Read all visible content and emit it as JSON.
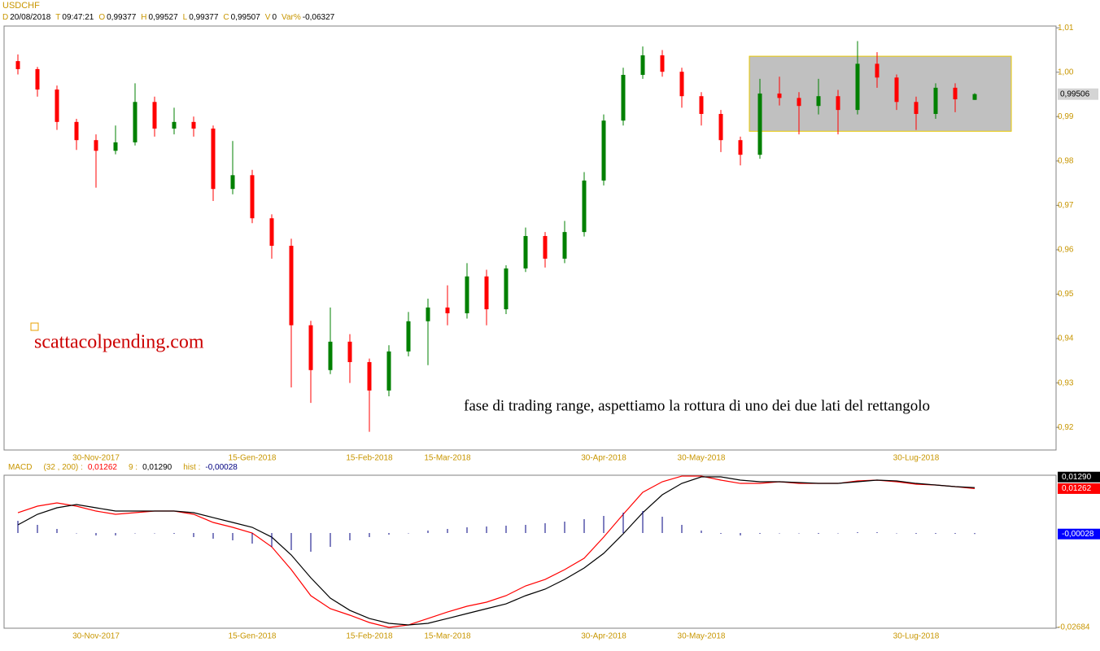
{
  "chart_data": [
    {
      "type": "candlestick",
      "title": "USDCHF",
      "info": [
        {
          "label": "D",
          "value": "20/08/2018"
        },
        {
          "label": "T",
          "value": "09:47:21"
        },
        {
          "label": "O",
          "value": "0,99377"
        },
        {
          "label": "H",
          "value": "0,99527"
        },
        {
          "label": "L",
          "value": "0,99377"
        },
        {
          "label": "C",
          "value": "0,99507"
        },
        {
          "label": "V",
          "value": "0"
        },
        {
          "label": "Var%",
          "value": "-0,06327"
        }
      ],
      "categories": [
        null,
        null,
        null,
        null,
        "30-Nov-2017",
        null,
        null,
        null,
        null,
        null,
        null,
        null,
        "15-Gen-2018",
        null,
        null,
        null,
        null,
        null,
        "15-Feb-2018",
        null,
        null,
        null,
        "15-Mar-2018",
        null,
        null,
        null,
        null,
        null,
        null,
        null,
        "30-Apr-2018",
        null,
        null,
        null,
        null,
        "30-May-2018",
        null,
        null,
        null,
        null,
        null,
        null,
        null,
        null,
        null,
        null,
        "30-Lug-2018",
        null,
        null,
        null
      ],
      "open": [
        1.0025,
        1.0007,
        0.9961,
        0.9888,
        0.9847,
        0.9823,
        0.9842,
        0.9933,
        0.9873,
        0.9888,
        0.9873,
        0.9737,
        0.9768,
        0.9671,
        0.9609,
        0.943,
        0.9329,
        0.9393,
        0.9347,
        0.9283,
        0.9371,
        0.9439,
        0.947,
        0.9457,
        0.954,
        0.9466,
        0.9558,
        0.9631,
        0.958,
        0.964,
        0.9756,
        0.9891,
        0.9994,
        1.0038,
        1.0001,
        0.9946,
        0.9906,
        0.9847,
        0.9814,
        0.9952,
        0.9942,
        0.9924,
        0.9946,
        0.9915,
        1.0019,
        0.9988,
        0.9933,
        0.9906,
        0.9965,
        0.99377
      ],
      "high": [
        1.004,
        1.0012,
        0.997,
        0.9895,
        0.986,
        0.988,
        0.9975,
        0.9945,
        0.992,
        0.99,
        0.988,
        0.9845,
        0.978,
        0.968,
        0.9625,
        0.944,
        0.947,
        0.941,
        0.9355,
        0.9385,
        0.946,
        0.949,
        0.952,
        0.957,
        0.9555,
        0.9565,
        0.965,
        0.964,
        0.9665,
        0.9775,
        0.9905,
        1.001,
        1.0058,
        1.005,
        1.001,
        0.9955,
        0.9915,
        0.9855,
        0.9985,
        0.999,
        0.9955,
        0.9985,
        0.996,
        1.007,
        1.0045,
        0.9995,
        0.9945,
        0.9975,
        0.9975,
        0.99527
      ],
      "low": [
        0.9995,
        0.9945,
        0.987,
        0.9825,
        0.974,
        0.9815,
        0.9835,
        0.9855,
        0.986,
        0.9855,
        0.971,
        0.9725,
        0.966,
        0.958,
        0.929,
        0.9255,
        0.932,
        0.93,
        0.919,
        0.927,
        0.936,
        0.934,
        0.943,
        0.9445,
        0.943,
        0.9455,
        0.955,
        0.956,
        0.957,
        0.963,
        0.9745,
        0.988,
        0.9985,
        0.999,
        0.992,
        0.988,
        0.982,
        0.979,
        0.9805,
        0.9925,
        0.986,
        0.9905,
        0.986,
        0.9905,
        0.9965,
        0.9915,
        0.987,
        0.9895,
        0.991,
        0.99377
      ],
      "close": [
        1.0007,
        0.9961,
        0.9888,
        0.9847,
        0.9823,
        0.9842,
        0.9933,
        0.9873,
        0.9888,
        0.9873,
        0.9737,
        0.9768,
        0.9671,
        0.9609,
        0.943,
        0.9329,
        0.9393,
        0.9347,
        0.9283,
        0.9371,
        0.9439,
        0.947,
        0.9457,
        0.954,
        0.9466,
        0.9558,
        0.9631,
        0.958,
        0.964,
        0.9756,
        0.9891,
        0.9994,
        1.0038,
        1.0001,
        0.9946,
        0.9906,
        0.9847,
        0.9814,
        0.9952,
        0.9942,
        0.9924,
        0.9946,
        0.9915,
        1.0019,
        0.9988,
        0.9933,
        0.9906,
        0.9965,
        0.9939,
        0.99507
      ],
      "up_color": "#008000",
      "down_color": "#ff0000",
      "ylim": [
        0.9149,
        1.0104
      ],
      "yticks": [
        {
          "value": 0.92,
          "label": "0,92"
        },
        {
          "value": 0.93,
          "label": "0,93"
        },
        {
          "value": 0.94,
          "label": "0,94"
        },
        {
          "value": 0.95,
          "label": "0,95"
        },
        {
          "value": 0.96,
          "label": "0,96"
        },
        {
          "value": 0.97,
          "label": "0,97"
        },
        {
          "value": 0.98,
          "label": "0,98"
        },
        {
          "value": 0.99,
          "label": "0,99"
        },
        {
          "value": 1.0,
          "label": "1,00"
        },
        {
          "value": 1.01,
          "label": "1,01"
        }
      ],
      "last_price": {
        "value": 0.99506,
        "label": "0,99506"
      },
      "range_box": {
        "top": 1.0036,
        "bottom": 0.9867,
        "color": "#c0c0c0",
        "border": "#e8c800"
      },
      "annotations": [
        "scattacolpending.com",
        "fase di trading range, aspettiamo la rottura di uno dei due lati del rettangolo"
      ],
      "grid": false
    },
    {
      "type": "line",
      "title": "MACD",
      "series": [
        {
          "name": "(32 , 200) :",
          "color": "#ff0000",
          "last_label": "0,01262",
          "values": [
            0.00578,
            0.00763,
            0.00855,
            0.00763,
            0.00624,
            0.00532,
            0.00578,
            0.00624,
            0.00624,
            0.00532,
            0.00301,
            0.00162,
            0,
            -0.00393,
            -0.0104,
            -0.0178,
            -0.0215,
            -0.02335,
            -0.02543,
            -0.02682,
            -0.02613,
            -0.02428,
            -0.02243,
            -0.02081,
            -0.01965,
            -0.0178,
            -0.01503,
            -0.01318,
            -0.0104,
            -0.00717,
            -0.00116,
            0.00532,
            0.01156,
            0.01457,
            0.01618,
            0.01618,
            0.01503,
            0.0141,
            0.0141,
            0.01457,
            0.0141,
            0.0141,
            0.0141,
            0.0148,
            0.01503,
            0.01457,
            0.01387,
            0.01364,
            0.01318,
            0.01262
          ]
        },
        {
          "name": "9 :",
          "color": "#000000",
          "last_label": "0,01290",
          "values": [
            0.00231,
            0.00532,
            0.00717,
            0.00809,
            0.00717,
            0.00624,
            0.00624,
            0.00624,
            0.00624,
            0.00578,
            0.00439,
            0.00301,
            0.00162,
            -0.00116,
            -0.00624,
            -0.01272,
            -0.0185,
            -0.02197,
            -0.02428,
            -0.02566,
            -0.02613,
            -0.02566,
            -0.02428,
            -0.02289,
            -0.0215,
            -0.02012,
            -0.0178,
            -0.01595,
            -0.01318,
            -0.00994,
            -0.00578,
            -0.00023,
            0.00578,
            0.01087,
            0.0141,
            0.01595,
            0.01595,
            0.01503,
            0.01457,
            0.01457,
            0.01434,
            0.0141,
            0.0141,
            0.01457,
            0.01503,
            0.0148,
            0.0141,
            0.01364,
            0.01318,
            0.0129
          ]
        },
        {
          "name": "hist :",
          "color": "#000080",
          "type": "bar",
          "last_label": "-0,00028",
          "values": [
            0.00347,
            0.00231,
            0.00116,
            0,
            -0.00069,
            -0.00069,
            0,
            0,
            -0.00023,
            -0.00116,
            -0.00162,
            -0.00208,
            -0.00301,
            -0.00393,
            -0.00486,
            -0.00532,
            -0.00393,
            -0.00208,
            -0.00116,
            -0.00046,
            0,
            0.00069,
            0.00116,
            0.00162,
            0.00185,
            0.00208,
            0.00231,
            0.00277,
            0.00324,
            0.00393,
            0.00486,
            0.00578,
            0.00624,
            0.00462,
            0.00231,
            0.00069,
            -0.00023,
            -0.00069,
            -0.00023,
            0,
            0,
            -0.00023,
            0,
            0.00023,
            0.00023,
            0,
            -0.00023,
            -0.00023,
            -0.00023,
            -0.00028
          ]
        }
      ],
      "ylim": [
        -0.02705,
        0.01642
      ],
      "yticks": [
        {
          "value": -0.02684,
          "label": "-0,02684"
        }
      ]
    }
  ]
}
